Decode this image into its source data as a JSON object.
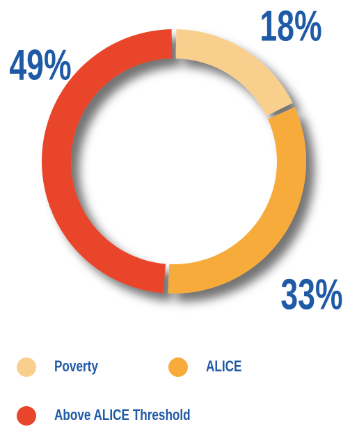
{
  "chart_data": {
    "type": "donut",
    "categories": [
      "Poverty",
      "ALICE",
      "Above ALICE Threshold"
    ],
    "values": [
      18,
      33,
      49
    ],
    "value_labels": [
      "18%",
      "33%",
      "49%"
    ],
    "colors": [
      "#f9cf8e",
      "#f7ab3a",
      "#e8452c"
    ],
    "legend": "bottom"
  }
}
